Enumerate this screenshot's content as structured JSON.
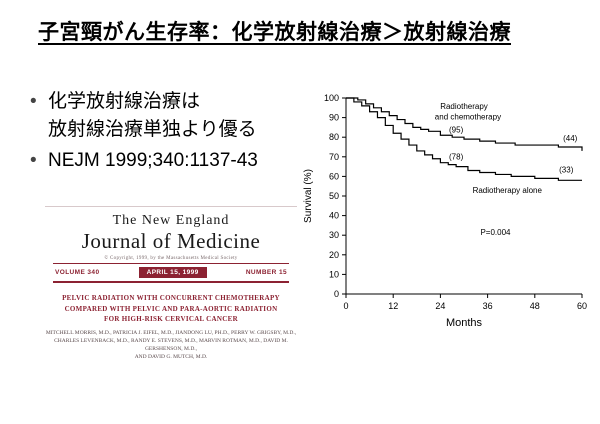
{
  "slide": {
    "title": "子宮頸がん生存率：化学放射線治療＞放射線治療",
    "bullets": {
      "marker": "•",
      "item1_line1": "化学放射線治療は",
      "item1_line2": "放射線治療単独より優る",
      "item2": "NEJM 1999;340:1137-43"
    }
  },
  "journal_cover": {
    "masthead_line1": "The New England",
    "masthead_line2": "Journal of Medicine",
    "copyright_line": "© Copyright, 1999, by the Massachusetts Medical Society",
    "volume": "VOLUME 340",
    "date": "APRIL 15, 1999",
    "number": "NUMBER 15",
    "article_title": "PELVIC RADIATION WITH CONCURRENT CHEMOTHERAPY COMPARED WITH PELVIC AND PARA-AORTIC RADIATION FOR HIGH-RISK CERVICAL CANCER",
    "authors_line1": "MITCHELL MORRIS, M.D., PATRICIA J. EIFEL, M.D., JIANDONG LU, PH.D., PERRY W. GRIGSBY, M.D.,",
    "authors_line2": "CHARLES LEVENBACK, M.D., RANDY E. STEVENS, M.D., MARVIN ROTMAN, M.D., DAVID M. GERSHENSON, M.D.,",
    "authors_line3": "AND DAVID G. MUTCH, M.D.",
    "accent_color": "#8c2232"
  },
  "chart_data": {
    "type": "line",
    "subtype": "kaplan-meier-step",
    "title": "",
    "xlabel": "Months",
    "ylabel": "Survival (%)",
    "xlim": [
      0,
      60
    ],
    "ylim": [
      0,
      100
    ],
    "xticks": [
      0,
      12,
      24,
      36,
      48,
      60
    ],
    "yticks": [
      0,
      10,
      20,
      30,
      40,
      50,
      60,
      70,
      80,
      90,
      100
    ],
    "grid": false,
    "line_color": "#000000",
    "series": [
      {
        "name": "Radiotherapy and chemotherapy",
        "x": [
          0,
          3,
          5,
          7,
          9,
          11,
          13,
          15,
          17,
          19,
          21,
          24,
          27,
          30,
          34,
          38,
          43,
          48,
          54,
          60
        ],
        "y": [
          100,
          99,
          97,
          95,
          93,
          91,
          89,
          87,
          85,
          84,
          83,
          81,
          80,
          79,
          78,
          77,
          76,
          76,
          75,
          73
        ]
      },
      {
        "name": "Radiotherapy alone",
        "x": [
          0,
          2,
          4,
          6,
          8,
          10,
          12,
          14,
          16,
          18,
          20,
          22,
          24,
          26,
          28,
          31,
          34,
          38,
          42,
          48,
          54,
          60
        ],
        "y": [
          100,
          98,
          96,
          93,
          90,
          86,
          82,
          79,
          76,
          73,
          71,
          69,
          67,
          66,
          65,
          63,
          62,
          61,
          60,
          59,
          58,
          58
        ]
      }
    ],
    "annotations": [
      {
        "text": "Radiotherapy",
        "x": 30,
        "y": 94.5
      },
      {
        "text": "and chemotherapy",
        "x": 31,
        "y": 89
      },
      {
        "text": "(95)",
        "x": 28,
        "y": 82.5
      },
      {
        "text": "(44)",
        "x": 57,
        "y": 78
      },
      {
        "text": "(78)",
        "x": 28,
        "y": 68.5
      },
      {
        "text": "(33)",
        "x": 56,
        "y": 62
      },
      {
        "text": "Radiotherapy alone",
        "x": 41,
        "y": 51.5
      },
      {
        "text": "P=0.004",
        "x": 38,
        "y": 30
      }
    ]
  }
}
